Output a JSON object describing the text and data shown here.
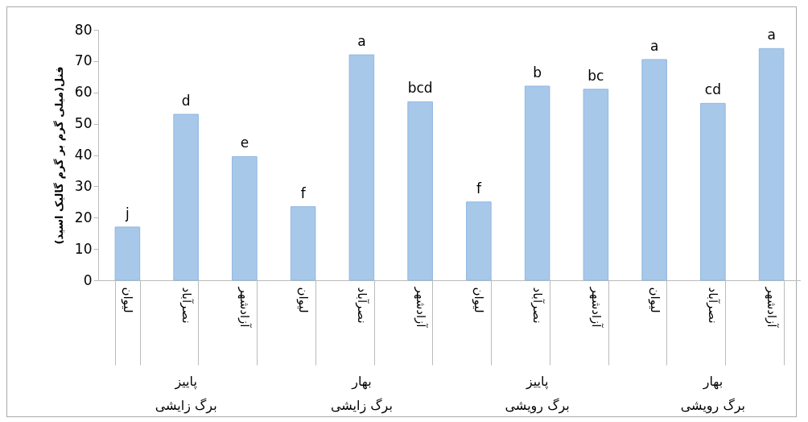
{
  "chart_data": {
    "type": "bar",
    "ylabel": "فنل(میلی گرم بر گرم گالیک اسید)",
    "categories": [
      "لیوان",
      "نصرآباد",
      "آزادشهر",
      "لیوان",
      "نصرآباد",
      "آزادشهر",
      "لیوان",
      "نصرآباد",
      "آزادشهر",
      "لیوان",
      "نصرآباد",
      "آزادشهر"
    ],
    "values": [
      17,
      53,
      39.5,
      23.5,
      72,
      57,
      25,
      62,
      61,
      70.5,
      56.5,
      74
    ],
    "value_labels": [
      "j",
      "d",
      "e",
      "f",
      "a",
      "bcd",
      "f",
      "b",
      "bc",
      "a",
      "cd",
      "a"
    ],
    "color": "#a8c8ea",
    "annotations": [
      "پاییز\nبرگ زایشی",
      "بهار\nبرگ زایشی",
      "پاییز\nبرگ رویشی",
      "بهار\nبرگ رویشی"
    ],
    "ylim": [
      0,
      80
    ],
    "yticks": [
      0,
      10,
      20,
      30,
      40,
      50,
      60,
      70,
      80
    ],
    "grid": false
  }
}
